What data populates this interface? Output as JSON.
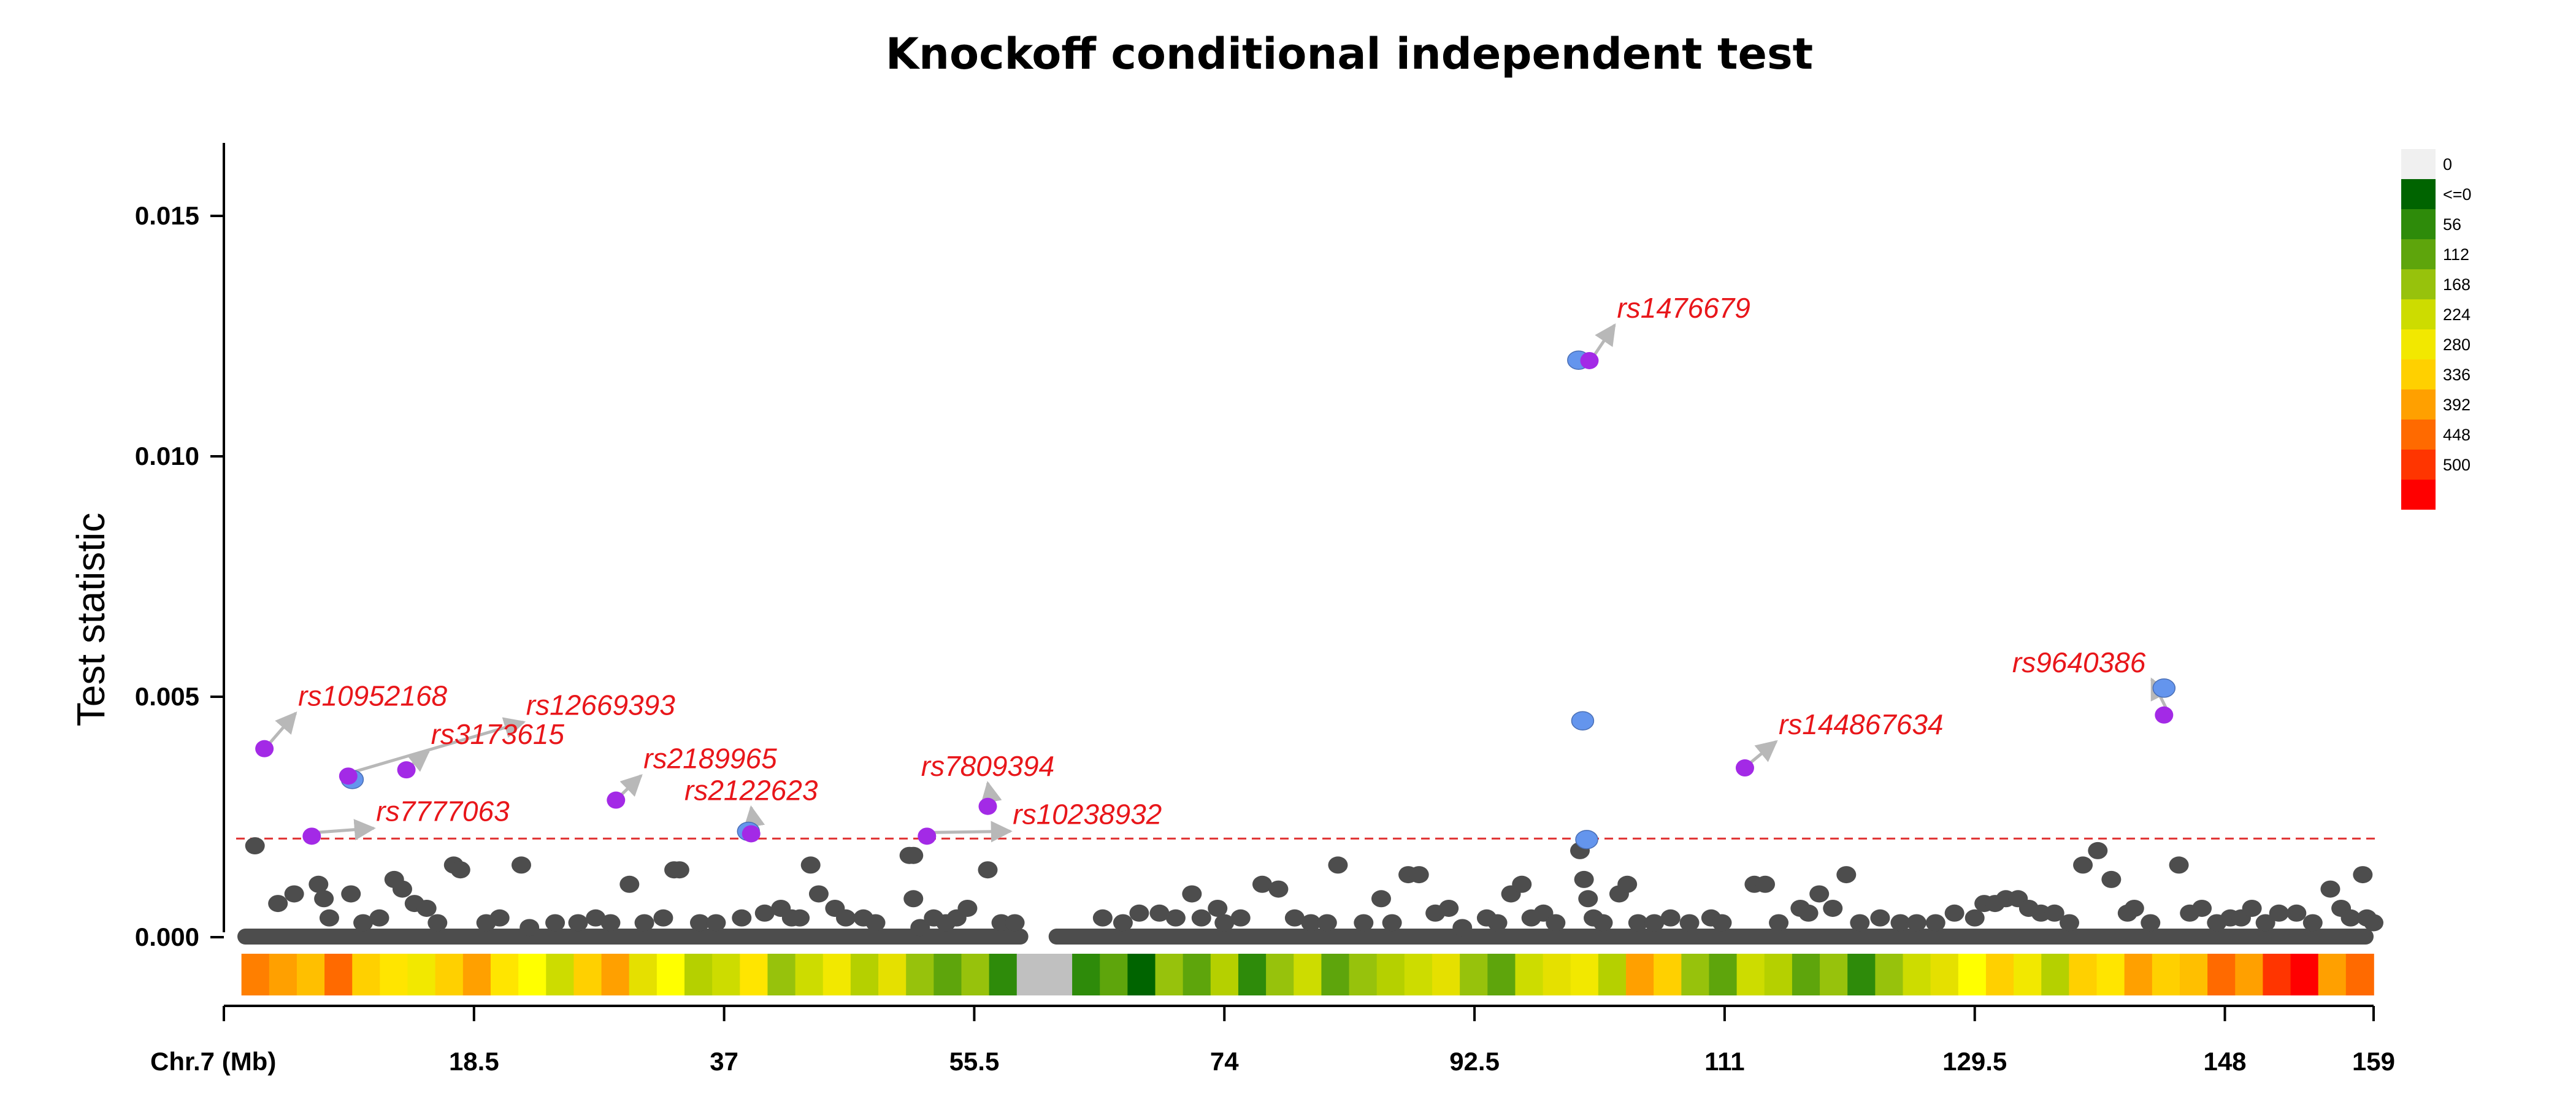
{
  "chart_data": {
    "type": "scatter",
    "title": "Knockoff conditional independent test",
    "ylabel": "Test statistic",
    "xlabel": "Chr.7 (Mb)",
    "xlim": [
      0,
      159
    ],
    "ylim": [
      0,
      0.0165
    ],
    "x_ticks": [
      18.5,
      37,
      55.5,
      74,
      92.5,
      111,
      129.5,
      148,
      159
    ],
    "x_tick_labels": [
      "18.5",
      "37",
      "55.5",
      "74",
      "92.5",
      "111",
      "129.5",
      "148",
      "159"
    ],
    "y_ticks": [
      0,
      0.005,
      0.01,
      0.015
    ],
    "y_tick_labels": [
      "0.000",
      "0.005",
      "0.010",
      "0.015"
    ],
    "threshold": 0.00205,
    "colors": {
      "background_point": "#4d4d4d",
      "highlight_point": "#a32ae6",
      "proxy_point": "#6495ed",
      "label_text": "#e8161a",
      "threshold_line": "#e03030",
      "arrow": "#b8b8b8"
    },
    "highlighted_snps": [
      {
        "name": "rs10952168",
        "x": 3.0,
        "y": 0.00392
      },
      {
        "name": "rs7777063",
        "x": 6.5,
        "y": 0.0021
      },
      {
        "name": "rs12669393",
        "x": 9.2,
        "y": 0.00335
      },
      {
        "name": "rs3173615",
        "x": 13.5,
        "y": 0.00348
      },
      {
        "name": "rs2189965",
        "x": 29.0,
        "y": 0.00285
      },
      {
        "name": "rs2122623",
        "x": 39.0,
        "y": 0.00215
      },
      {
        "name": "rs10238932",
        "x": 52.0,
        "y": 0.0021
      },
      {
        "name": "rs7809394",
        "x": 56.5,
        "y": 0.00272
      },
      {
        "name": "rs1476679",
        "x": 101.0,
        "y": 0.01199
      },
      {
        "name": "rs144867634",
        "x": 112.5,
        "y": 0.00352
      },
      {
        "name": "rs9640386",
        "x": 143.5,
        "y": 0.00462
      }
    ],
    "proxy_snps": [
      {
        "x": 9.5,
        "y": 0.00328
      },
      {
        "x": 38.8,
        "y": 0.0022
      },
      {
        "x": 100.2,
        "y": 0.012
      },
      {
        "x": 100.5,
        "y": 0.0045
      },
      {
        "x": 100.8,
        "y": 0.00203
      },
      {
        "x": 143.5,
        "y": 0.00518
      }
    ],
    "background_snps": [
      [
        2.3,
        0.0019
      ],
      [
        4.0,
        0.0007
      ],
      [
        5.2,
        0.0009
      ],
      [
        7.0,
        0.0011
      ],
      [
        7.4,
        0.0008
      ],
      [
        7.8,
        0.0004
      ],
      [
        9.4,
        0.0009
      ],
      [
        10.3,
        0.0003
      ],
      [
        11.5,
        0.0004
      ],
      [
        12.6,
        0.0012
      ],
      [
        13.2,
        0.001
      ],
      [
        14.1,
        0.0007
      ],
      [
        15.0,
        0.0006
      ],
      [
        15.8,
        0.0003
      ],
      [
        17.0,
        0.0015
      ],
      [
        17.5,
        0.0014
      ],
      [
        19.4,
        0.0003
      ],
      [
        20.4,
        0.0004
      ],
      [
        22.0,
        0.0015
      ],
      [
        22.6,
        0.0002
      ],
      [
        24.5,
        0.0003
      ],
      [
        26.2,
        0.0003
      ],
      [
        27.5,
        0.0004
      ],
      [
        28.6,
        0.0003
      ],
      [
        30.0,
        0.0011
      ],
      [
        31.1,
        0.0003
      ],
      [
        32.5,
        0.0004
      ],
      [
        33.3,
        0.0014
      ],
      [
        33.7,
        0.0014
      ],
      [
        35.2,
        0.0003
      ],
      [
        36.4,
        0.0003
      ],
      [
        38.3,
        0.0004
      ],
      [
        40.0,
        0.0005
      ],
      [
        41.2,
        0.0006
      ],
      [
        42.0,
        0.0004
      ],
      [
        42.6,
        0.0004
      ],
      [
        43.4,
        0.0015
      ],
      [
        44.0,
        0.0009
      ],
      [
        45.2,
        0.0006
      ],
      [
        46.0,
        0.0004
      ],
      [
        47.3,
        0.0004
      ],
      [
        48.2,
        0.0003
      ],
      [
        50.7,
        0.0017
      ],
      [
        51.0,
        0.0017
      ],
      [
        51.0,
        0.0008
      ],
      [
        51.5,
        0.0002
      ],
      [
        52.5,
        0.0004
      ],
      [
        53.4,
        0.0003
      ],
      [
        54.2,
        0.0004
      ],
      [
        55.0,
        0.0006
      ],
      [
        56.5,
        0.0014
      ],
      [
        57.5,
        0.0003
      ],
      [
        58.5,
        0.0003
      ],
      [
        65.0,
        0.0004
      ],
      [
        66.5,
        0.0003
      ],
      [
        67.7,
        0.0005
      ],
      [
        69.2,
        0.0005
      ],
      [
        70.4,
        0.0004
      ],
      [
        71.6,
        0.0009
      ],
      [
        72.3,
        0.0004
      ],
      [
        73.5,
        0.0006
      ],
      [
        74.0,
        0.0003
      ],
      [
        75.2,
        0.0004
      ],
      [
        76.8,
        0.0011
      ],
      [
        78.0,
        0.001
      ],
      [
        79.2,
        0.0004
      ],
      [
        80.4,
        0.0003
      ],
      [
        81.6,
        0.0003
      ],
      [
        82.4,
        0.0015
      ],
      [
        84.3,
        0.0003
      ],
      [
        85.6,
        0.0008
      ],
      [
        86.4,
        0.0003
      ],
      [
        87.6,
        0.0013
      ],
      [
        88.4,
        0.0013
      ],
      [
        89.6,
        0.0005
      ],
      [
        90.6,
        0.0006
      ],
      [
        91.6,
        0.0002
      ],
      [
        93.4,
        0.0004
      ],
      [
        94.2,
        0.0003
      ],
      [
        95.2,
        0.0009
      ],
      [
        96.0,
        0.0011
      ],
      [
        96.7,
        0.0004
      ],
      [
        97.6,
        0.0005
      ],
      [
        98.5,
        0.0003
      ],
      [
        100.3,
        0.0018
      ],
      [
        100.6,
        0.0012
      ],
      [
        100.9,
        0.0008
      ],
      [
        101.3,
        0.0004
      ],
      [
        102.0,
        0.0003
      ],
      [
        103.2,
        0.0009
      ],
      [
        103.8,
        0.0011
      ],
      [
        104.6,
        0.0003
      ],
      [
        105.8,
        0.0003
      ],
      [
        107.0,
        0.0004
      ],
      [
        108.4,
        0.0003
      ],
      [
        110.0,
        0.0004
      ],
      [
        110.8,
        0.0003
      ],
      [
        113.2,
        0.0011
      ],
      [
        114.0,
        0.0011
      ],
      [
        115.0,
        0.0003
      ],
      [
        116.6,
        0.0006
      ],
      [
        117.2,
        0.0005
      ],
      [
        118.0,
        0.0009
      ],
      [
        119.0,
        0.0006
      ],
      [
        120.0,
        0.0013
      ],
      [
        121.0,
        0.0003
      ],
      [
        122.5,
        0.0004
      ],
      [
        124.0,
        0.0003
      ],
      [
        125.2,
        0.0003
      ],
      [
        126.6,
        0.0003
      ],
      [
        128.0,
        0.0005
      ],
      [
        129.5,
        0.0004
      ],
      [
        130.2,
        0.0007
      ],
      [
        131.0,
        0.0007
      ],
      [
        131.8,
        0.0008
      ],
      [
        132.7,
        0.0008
      ],
      [
        133.5,
        0.0006
      ],
      [
        134.4,
        0.0005
      ],
      [
        135.4,
        0.0005
      ],
      [
        136.5,
        0.0003
      ],
      [
        137.5,
        0.0015
      ],
      [
        138.6,
        0.0018
      ],
      [
        139.6,
        0.0012
      ],
      [
        140.8,
        0.0005
      ],
      [
        141.3,
        0.0006
      ],
      [
        142.5,
        0.0003
      ],
      [
        144.6,
        0.0015
      ],
      [
        145.4,
        0.0005
      ],
      [
        146.3,
        0.0006
      ],
      [
        147.4,
        0.0003
      ],
      [
        148.4,
        0.0004
      ],
      [
        149.2,
        0.0004
      ],
      [
        150.0,
        0.0006
      ],
      [
        151.0,
        0.0003
      ],
      [
        152.0,
        0.0005
      ],
      [
        153.3,
        0.0005
      ],
      [
        154.5,
        0.0003
      ],
      [
        155.8,
        0.001
      ],
      [
        156.6,
        0.0006
      ],
      [
        157.3,
        0.0004
      ],
      [
        158.2,
        0.0013
      ],
      [
        158.5,
        0.0004
      ],
      [
        159.0,
        0.0003
      ]
    ],
    "zero_gap": [
      59.5,
      61.0
    ],
    "heatmap_legend": {
      "labels": [
        "0",
        "<=0",
        "56",
        "112",
        "168",
        "224",
        "280",
        "336",
        "392",
        "448",
        "500"
      ],
      "colors": [
        "#f0f0f0",
        "#006400",
        "#2e8b0a",
        "#5ea50c",
        "#97c20c",
        "#cddc00",
        "#f2e800",
        "#ffd000",
        "#ffa000",
        "#ff6a00",
        "#ff3500",
        "#ff0000"
      ]
    },
    "density_track_colors": [
      "#ff7f00",
      "#ffa000",
      "#ffbf00",
      "#ff6a00",
      "#ffd000",
      "#ffe500",
      "#f2e800",
      "#ffd000",
      "#ffa000",
      "#ffe500",
      "#ffff00",
      "#cddc00",
      "#ffd000",
      "#ffa000",
      "#e5e000",
      "#ffff00",
      "#b5d000",
      "#cddc00",
      "#ffe500",
      "#97c20c",
      "#cddc00",
      "#f2e800",
      "#b5d000",
      "#e5e000",
      "#97c20c",
      "#5ea50c",
      "#97c20c",
      "#2e8b0a",
      "#c0c0c0",
      "#c0c0c0",
      "#2e8b0a",
      "#5ea50c",
      "#006400",
      "#97c20c",
      "#5ea50c",
      "#b5d000",
      "#2e8b0a",
      "#97c20c",
      "#cddc00",
      "#5ea50c",
      "#97c20c",
      "#b5d000",
      "#cddc00",
      "#e5e000",
      "#97c20c",
      "#5ea50c",
      "#cddc00",
      "#e5e000",
      "#f2e800",
      "#b5d000",
      "#ffa000",
      "#ffd000",
      "#97c20c",
      "#5ea50c",
      "#cddc00",
      "#b5d000",
      "#5ea50c",
      "#97c20c",
      "#2e8b0a",
      "#97c20c",
      "#cddc00",
      "#e5e000",
      "#ffff00",
      "#ffd000",
      "#f2e800",
      "#b5d000",
      "#ffd000",
      "#ffe500",
      "#ffa000",
      "#ffd000",
      "#ffbf00",
      "#ff6a00",
      "#ffa000",
      "#ff3500",
      "#ff0000",
      "#ffa000",
      "#ff6a00"
    ]
  }
}
